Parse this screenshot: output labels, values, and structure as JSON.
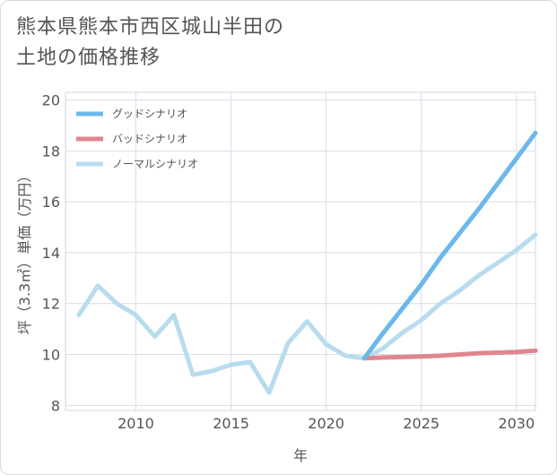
{
  "title_lines": [
    "熊本県熊本市西区城山半田の",
    "土地の価格推移"
  ],
  "chart_data": {
    "type": "line",
    "title": "熊本県熊本市西区城山半田の土地の価格推移",
    "xlabel": "年",
    "ylabel": "坪（3.3㎡）単価（万円）",
    "xlim": [
      2006.3,
      2031
    ],
    "ylim": [
      7.8,
      20.3
    ],
    "xticks": [
      2010,
      2015,
      2020,
      2025,
      2030
    ],
    "yticks": [
      8,
      10,
      12,
      14,
      16,
      18,
      20
    ],
    "grid": true,
    "legend_position": "top-left",
    "series": [
      {
        "name": "グッドシナリオ",
        "color": "#6bb8ea",
        "x": [
          2022,
          2023,
          2024,
          2025,
          2026,
          2027,
          2028,
          2029,
          2030,
          2031
        ],
        "y": [
          9.85,
          10.85,
          11.8,
          12.75,
          13.8,
          14.75,
          15.7,
          16.7,
          17.7,
          18.7
        ]
      },
      {
        "name": "バッドシナリオ",
        "color": "#e0868e",
        "x": [
          2022,
          2023,
          2024,
          2025,
          2026,
          2027,
          2028,
          2029,
          2030,
          2031
        ],
        "y": [
          9.85,
          9.88,
          9.9,
          9.92,
          9.95,
          10.0,
          10.05,
          10.07,
          10.1,
          10.15
        ]
      },
      {
        "name": "ノーマルシナリオ",
        "color": "#b8dced",
        "x": [
          2007,
          2008,
          2009,
          2010,
          2011,
          2012,
          2013,
          2014,
          2015,
          2016,
          2017,
          2018,
          2019,
          2020,
          2021,
          2022,
          2023,
          2024,
          2025,
          2026,
          2027,
          2028,
          2029,
          2030,
          2031
        ],
        "y": [
          11.55,
          12.7,
          12.0,
          11.55,
          10.7,
          11.55,
          9.2,
          9.35,
          9.6,
          9.7,
          8.5,
          10.45,
          11.3,
          10.4,
          9.95,
          9.85,
          10.25,
          10.85,
          11.35,
          12.0,
          12.5,
          13.1,
          13.6,
          14.1,
          14.7
        ]
      }
    ]
  }
}
